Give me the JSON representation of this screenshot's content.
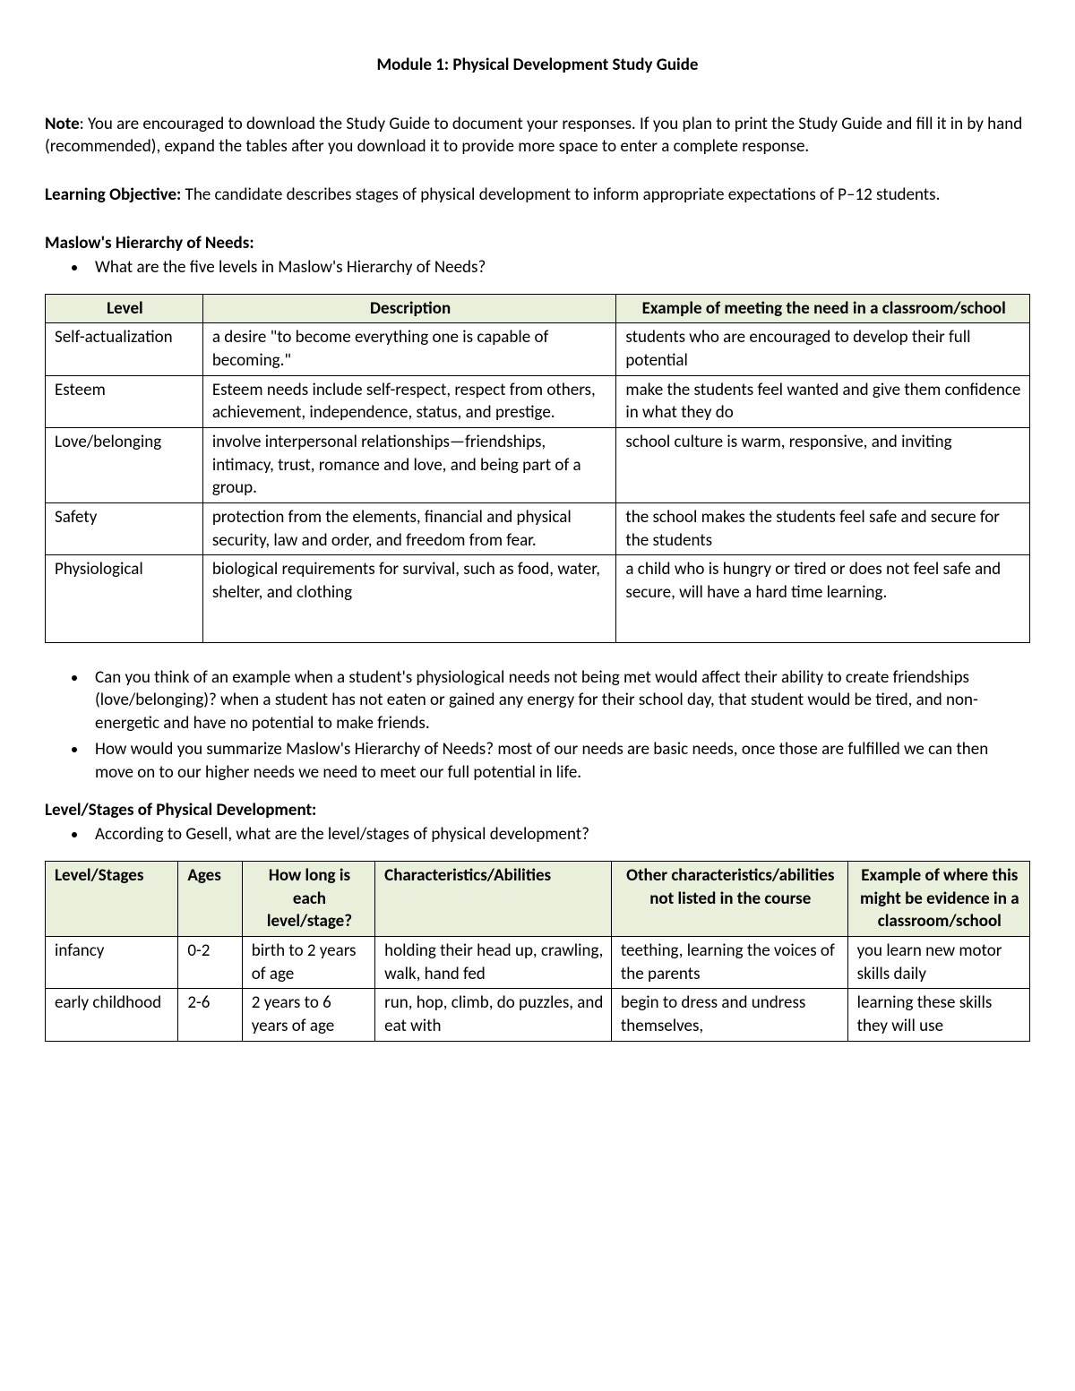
{
  "title": "Module 1: Physical Development Study Guide",
  "note": {
    "label": "Note",
    "text": ": You are encouraged to download the Study Guide to document your responses. If you plan to print the Study Guide and fill it in by hand (recommended), expand the tables after you download it to provide more space to enter a complete response."
  },
  "objective": {
    "label": "Learning Objective:",
    "text": "  The candidate describes stages of physical development to inform appropriate expectations of P–12 students."
  },
  "maslow": {
    "heading": "Maslow's Hierarchy of Needs:",
    "q1": "What are the five levels in Maslow's Hierarchy of Needs?",
    "table": {
      "header_bg": "#e8f0db",
      "columns": [
        "Level",
        "Description",
        "Example of meeting the need in a classroom/school"
      ],
      "rows": [
        {
          "level": "Self-actualization",
          "desc": "a desire \"to become everything one is capable of becoming.\"",
          "example": "students who are encouraged to develop their full potential"
        },
        {
          "level": "Esteem",
          "desc": "Esteem needs include self-respect, respect from others, achievement, independence, status, and prestige.",
          "example": "make the students feel wanted and give them confidence in what they do"
        },
        {
          "level": "Love/belonging",
          "desc": "involve interpersonal relationships—friendships, intimacy, trust, romance and love, and being part of a group.",
          "example": "school culture is warm, responsive, and inviting"
        },
        {
          "level": "Safety",
          "desc": "protection from the elements, financial and physical security, law and order, and freedom from fear.",
          "example": "the school makes the students feel safe and secure for the students"
        },
        {
          "level": "Physiological",
          "desc": "biological requirements for survival, such as food, water, shelter, and clothing",
          "example": "a child who is hungry or tired or does not feel safe and secure, will have a hard time learning."
        }
      ]
    },
    "q2": "Can you think of an example when a student's physiological needs not being met would affect their ability to create friendships (love/belonging)? when a student has not eaten or gained any energy for their school day, that student would be tired, and non-energetic and have no potential to make friends.",
    "q3": "How would you summarize Maslow's Hierarchy of Needs? most of our needs are basic needs, once those are fulfilled we can then move on to our higher needs we need to meet our full potential in life."
  },
  "stages": {
    "heading": "Level/Stages of Physical Development:",
    "q1": "According to Gesell, what are the level/stages of physical development?",
    "table": {
      "header_bg": "#e8f0db",
      "columns": [
        "Level/Stages",
        "Ages",
        "How long is each level/stage?",
        "Characteristics/Abilities",
        "Other characteristics/abilities not listed in the course",
        "Example of where this might be evidence in a classroom/school"
      ],
      "rows": [
        {
          "stage": "infancy",
          "ages": "0-2",
          "howlong": "birth to 2 years of age",
          "char": "holding their head up, crawling, walk, hand fed",
          "other": "teething, learning the voices of the parents",
          "example": "you learn new motor skills daily"
        },
        {
          "stage": "early childhood",
          "ages": "2-6",
          "howlong": "2 years to 6 years of age",
          "char": "run, hop, climb, do puzzles, and eat with",
          "other": "begin to dress and undress themselves,",
          "example": "learning these skills they will use"
        }
      ]
    }
  }
}
